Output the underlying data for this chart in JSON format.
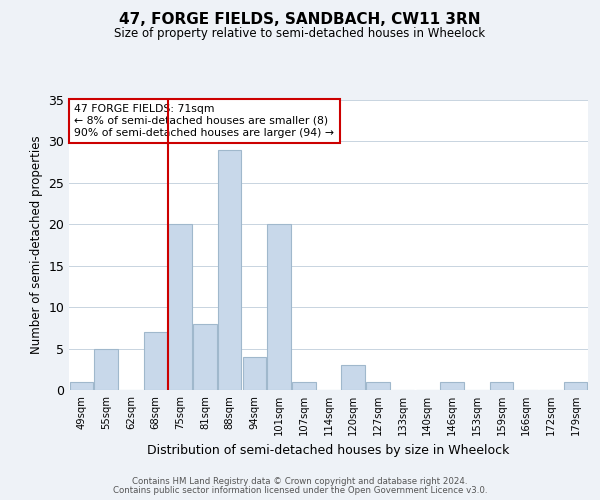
{
  "title": "47, FORGE FIELDS, SANDBACH, CW11 3RN",
  "subtitle": "Size of property relative to semi-detached houses in Wheelock",
  "xlabel": "Distribution of semi-detached houses by size in Wheelock",
  "ylabel": "Number of semi-detached properties",
  "bin_labels": [
    "49sqm",
    "55sqm",
    "62sqm",
    "68sqm",
    "75sqm",
    "81sqm",
    "88sqm",
    "94sqm",
    "101sqm",
    "107sqm",
    "114sqm",
    "120sqm",
    "127sqm",
    "133sqm",
    "140sqm",
    "146sqm",
    "153sqm",
    "159sqm",
    "166sqm",
    "172sqm",
    "179sqm"
  ],
  "bar_heights": [
    1,
    5,
    0,
    7,
    20,
    8,
    29,
    4,
    20,
    1,
    0,
    3,
    1,
    0,
    0,
    1,
    0,
    1,
    0,
    0,
    1
  ],
  "bar_color": "#c8d8ea",
  "bar_edge_color": "#a0b8cc",
  "ylim": [
    0,
    35
  ],
  "yticks": [
    0,
    5,
    10,
    15,
    20,
    25,
    30,
    35
  ],
  "property_line_x": 3.5,
  "property_line_color": "#cc0000",
  "annotation_title": "47 FORGE FIELDS: 71sqm",
  "annotation_line1": "← 8% of semi-detached houses are smaller (8)",
  "annotation_line2": "90% of semi-detached houses are larger (94) →",
  "footer1": "Contains HM Land Registry data © Crown copyright and database right 2024.",
  "footer2": "Contains public sector information licensed under the Open Government Licence v3.0.",
  "background_color": "#eef2f7",
  "plot_background": "#ffffff"
}
